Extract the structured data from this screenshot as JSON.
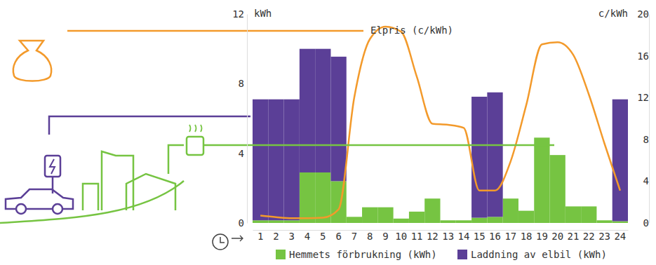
{
  "chart_data": {
    "type": "bar",
    "stacked": true,
    "grid": false,
    "data_labels": false,
    "ylabel": "kWh",
    "y2label": "c/kWh",
    "categories": [
      "1",
      "2",
      "3",
      "4",
      "5",
      "6",
      "7",
      "8",
      "9",
      "10",
      "11",
      "12",
      "13",
      "14",
      "15",
      "16",
      "17",
      "18",
      "19",
      "20",
      "21",
      "22",
      "23",
      "24"
    ],
    "ylim": [
      0,
      12
    ],
    "yticks": [
      0,
      4,
      8,
      12
    ],
    "y2lim": [
      0,
      20
    ],
    "y2ticks": [
      0,
      4,
      8,
      12,
      16,
      20
    ],
    "series": [
      {
        "name": "Hemmets förbrukning (kWh)",
        "type": "bar",
        "color": "#76c442",
        "values": [
          0.15,
          0.15,
          0.15,
          2.9,
          2.9,
          2.4,
          0.35,
          0.9,
          0.9,
          0.25,
          0.65,
          1.4,
          0.15,
          0.15,
          0.3,
          0.35,
          1.4,
          0.7,
          4.9,
          3.9,
          0.95,
          0.95,
          0.15,
          0.1
        ]
      },
      {
        "name": "Laddning av elbil (kWh)",
        "type": "bar",
        "color": "#5b3f97",
        "values": [
          6.95,
          6.95,
          6.95,
          7.1,
          7.1,
          7.15,
          0,
          0,
          0,
          0,
          0,
          0,
          0,
          0,
          6.95,
          7.15,
          0,
          0,
          0,
          0,
          0,
          0,
          0,
          7.0
        ]
      },
      {
        "name": "Elpris (c/kWh)",
        "type": "line",
        "axis": "y2",
        "color": "#f39a2b",
        "values": [
          0.7,
          0.55,
          0.45,
          0.45,
          0.5,
          1.3,
          12.0,
          17.6,
          18.8,
          18.3,
          14.0,
          9.5,
          9.4,
          9.1,
          3.1,
          3.1,
          5.9,
          11.3,
          17.1,
          17.3,
          16.1,
          12.3,
          7.6,
          3.1
        ]
      }
    ]
  }
}
